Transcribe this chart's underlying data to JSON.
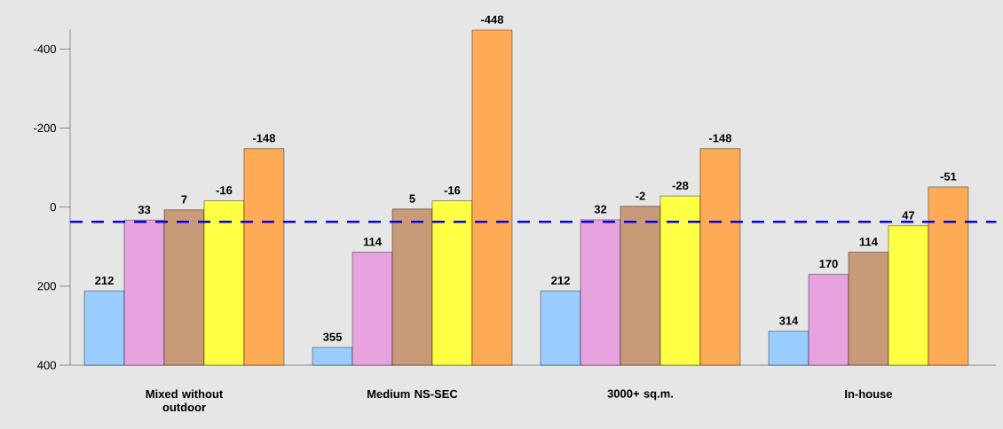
{
  "chart_data": {
    "type": "bar",
    "categories": [
      "Mixed without outdoor",
      "Medium NS-SEC",
      "3000+ sq.m.",
      "In-house"
    ],
    "series": [
      {
        "color": "#99ccff",
        "base": [
          400,
          400,
          400,
          400
        ],
        "values": [
          -188,
          -45,
          -188,
          -86
        ],
        "value_labels": [
          "212",
          "355",
          "212",
          "314"
        ]
      },
      {
        "color": "#e6a3e0",
        "base": [
          400,
          400,
          400,
          400
        ],
        "values": [
          -367,
          -286,
          -368,
          -230
        ],
        "value_labels": [
          "33",
          "114",
          "32",
          "170"
        ]
      },
      {
        "color": "#c89a78",
        "base": [
          400,
          400,
          400,
          400
        ],
        "values": [
          -393,
          -395,
          -402,
          -286
        ],
        "value_labels": [
          "7",
          "5",
          "-2",
          "114"
        ]
      },
      {
        "color": "#ffff44",
        "base": [
          400,
          400,
          400,
          400
        ],
        "values": [
          -416,
          -416,
          -428,
          -353
        ],
        "value_labels": [
          "-16",
          "-16",
          "-28",
          "47"
        ]
      },
      {
        "color": "#ffaa55",
        "base": [
          400,
          400,
          400,
          400
        ],
        "values": [
          -548,
          -848,
          -548,
          -451
        ],
        "value_labels": [
          "-148",
          "-448",
          "-148",
          "-51"
        ]
      }
    ],
    "ylim": [
      400,
      -450
    ],
    "yticks": [
      400,
      200,
      0,
      -200,
      -400
    ],
    "ref_lines": [
      {
        "axis": "y",
        "value": 37,
        "color": "#0000ee",
        "line_style": "dashed"
      }
    ]
  }
}
